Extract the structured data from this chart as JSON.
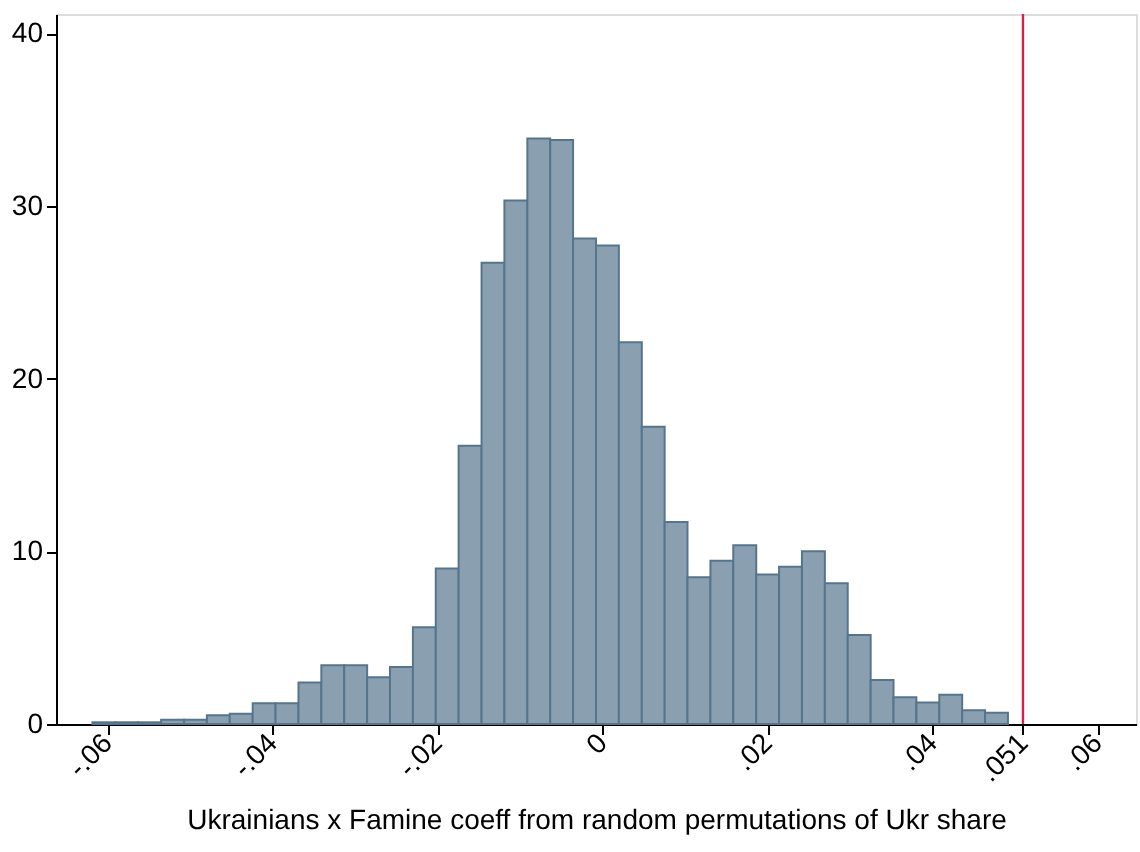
{
  "chart_data": {
    "type": "histogram",
    "xlabel": "Ukrainians x Famine coeff from random permutations of Ukr share",
    "bins": [
      -0.06178,
      -0.05901,
      -0.05623,
      -0.05346,
      -0.05068,
      -0.04791,
      -0.04514,
      -0.04236,
      -0.03959,
      -0.03681,
      -0.03404,
      -0.03127,
      -0.02849,
      -0.02572,
      -0.02294,
      -0.02017,
      -0.0174,
      -0.01462,
      -0.01185,
      -0.00907,
      -0.0063,
      -0.00353,
      -0.00075,
      0.00202,
      0.0048,
      0.00757,
      0.01034,
      0.01312,
      0.01589,
      0.01867,
      0.02144,
      0.02421,
      0.02699,
      0.02976,
      0.03254,
      0.03531,
      0.03808,
      0.04086,
      0.04363,
      0.04641,
      0.04918
    ],
    "values": [
      0.1,
      0.1,
      0.1,
      0.25,
      0.25,
      0.5,
      0.6,
      1.2,
      1.2,
      2.4,
      3.4,
      3.4,
      2.7,
      3.3,
      5.6,
      9.0,
      16.1,
      26.7,
      30.3,
      33.9,
      33.8,
      28.1,
      27.7,
      22.1,
      17.2,
      11.7,
      8.5,
      9.45,
      10.35,
      8.65,
      9.1,
      10.0,
      8.15,
      5.15,
      2.55,
      1.55,
      1.25,
      1.7,
      0.8,
      0.65
    ],
    "color": "#8aa0b0",
    "xlim": [
      -0.0662,
      0.0647
    ],
    "xticks": [
      {
        "value": -0.06,
        "label": "-.06"
      },
      {
        "value": -0.04,
        "label": "-.04"
      },
      {
        "value": -0.02,
        "label": "-.02"
      },
      0,
      {
        "value": 0.02,
        "label": ".02"
      },
      {
        "value": 0.04,
        "label": ".04"
      },
      {
        "value": 0.051,
        "label": ".051"
      },
      {
        "value": 0.06,
        "label": ".06"
      }
    ],
    "ylim": [
      0,
      41.1
    ],
    "yticks": [
      0,
      10,
      20,
      30,
      40
    ],
    "ref_lines": [
      {
        "axis": "x",
        "value": 0.051,
        "color": "#d6204a"
      }
    ],
    "grid": false
  }
}
